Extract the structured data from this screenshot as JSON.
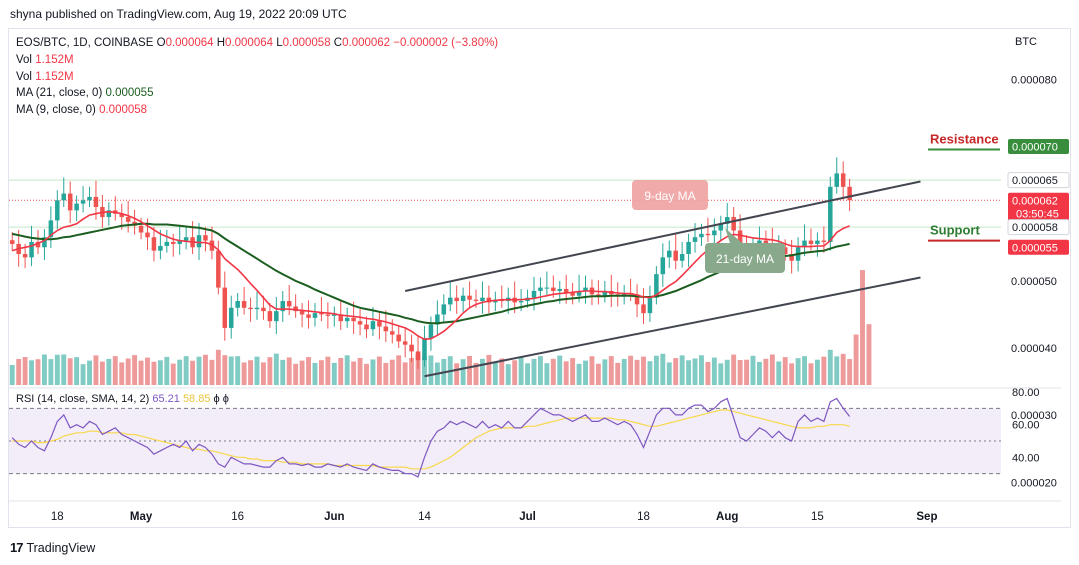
{
  "header": {
    "published": "shyna published on TradingView.com, Aug 19, 2022 20:09 UTC"
  },
  "legend": {
    "symbol": "EOS/BTC, 1D, COINBASE",
    "open_label": "O",
    "open": "0.000064",
    "high_label": "H",
    "high": "0.000064",
    "low_label": "L",
    "low": "0.000058",
    "close_label": "C",
    "close": "0.000062",
    "change": "−0.000002 (−3.80%)",
    "vol_label": "Vol",
    "vol1": "1.152M",
    "vol2": "1.152M",
    "ma21_label": "MA (21, close, 0)",
    "ma21": "0.000055",
    "ma9_label": "MA (9, close, 0)",
    "ma9": "0.000058"
  },
  "rsi_legend": {
    "label": "RSI (14, close, SMA, 14, 2)",
    "rsi": "65.21",
    "sma": "58.85",
    "extra1": "ϕ",
    "extra2": "ϕ"
  },
  "colors": {
    "up": "#26a69a",
    "down": "#ef5350",
    "ma9": "#f23645",
    "ma21": "#1b5e20",
    "rsi": "#7e57c2",
    "rsi_sma": "#f9d84a",
    "resistance": "#388e3c",
    "support_badge": "#f23645"
  },
  "footer": {
    "brand": "TradingView",
    "logo": "17"
  },
  "chart_data": {
    "type": "candlestick",
    "symbol": "EOS/BTC",
    "timeframe": "1D",
    "exchange": "COINBASE",
    "y_unit": "BTC",
    "price_range": [
      3.45e-05,
      8.75e-05
    ],
    "price_ticks": [
      {
        "value": 8e-05,
        "label": "0.000080"
      },
      {
        "value": 7e-05,
        "label": "0.000070"
      },
      {
        "value": 6.5e-05,
        "label": "0.000065"
      },
      {
        "value": 5.8e-05,
        "label": "0.000058"
      },
      {
        "value": 5e-05,
        "label": "0.000050"
      },
      {
        "value": 4e-05,
        "label": "0.000040"
      },
      {
        "value": 3e-05,
        "label": "0.000030"
      },
      {
        "value": 2e-05,
        "label": "0.000020"
      }
    ],
    "x_ticks": [
      "18",
      "May",
      "16",
      "Jun",
      "14",
      "Jul",
      "18",
      "Aug",
      "15",
      "Sep"
    ],
    "x_tick_index": [
      7,
      20,
      35,
      50,
      64,
      80,
      98,
      111,
      125,
      142
    ],
    "total_bars": 154,
    "price_badges": [
      {
        "label": "0.000070",
        "value": 7e-05,
        "color": "#388e3c"
      },
      {
        "label": "0.000065",
        "value": 6.5e-05,
        "color": "#ffffff"
      },
      {
        "label": "0.000062",
        "value": 6.2e-05,
        "color": "#f23645",
        "countdown": "03:50:45"
      },
      {
        "label": "0.000058",
        "value": 5.8e-05,
        "color": "#ffffff"
      },
      {
        "label": "0.000055",
        "value": 5.5e-05,
        "color": "#f23645"
      }
    ],
    "annotations": {
      "resistance": {
        "label": "Resistance",
        "value": 7e-05
      },
      "support": {
        "label": "Support",
        "value": 5.6e-05
      },
      "ma9_label": "9-day MA",
      "ma21_label": "21-day MA"
    },
    "channel": {
      "upper": [
        {
          "i": 61,
          "v": 4.85e-05
        },
        {
          "i": 141,
          "v": 6.48e-05
        }
      ],
      "lower": [
        {
          "i": 64,
          "v": 3.58e-05
        },
        {
          "i": 141,
          "v": 5.05e-05
        }
      ]
    },
    "close": [
      5.55e-05,
      5.4e-05,
      5.35e-05,
      5.58e-05,
      5.5e-05,
      5.65e-05,
      5.9e-05,
      6.2e-05,
      6.3e-05,
      6.05e-05,
      6.15e-05,
      6.2e-05,
      6.25e-05,
      6.1e-05,
      5.95e-05,
      6.05e-05,
      6e-05,
      5.95e-05,
      5.88e-05,
      5.82e-05,
      5.72e-05,
      5.65e-05,
      5.45e-05,
      5.52e-05,
      5.58e-05,
      5.55e-05,
      5.6e-05,
      5.65e-05,
      5.5e-05,
      5.68e-05,
      5.6e-05,
      5.45e-05,
      4.9e-05,
      4.3e-05,
      4.6e-05,
      4.7e-05,
      4.6e-05,
      4.58e-05,
      4.6e-05,
      4.55e-05,
      4.4e-05,
      4.55e-05,
      4.7e-05,
      4.62e-05,
      4.55e-05,
      4.5e-05,
      4.45e-05,
      4.52e-05,
      4.5e-05,
      4.48e-05,
      4.5e-05,
      4.4e-05,
      4.45e-05,
      4.4e-05,
      4.35e-05,
      4.28e-05,
      4.4e-05,
      4.32e-05,
      4.25e-05,
      4.2e-05,
      4.1e-05,
      4.05e-05,
      3.95e-05,
      3.82e-05,
      4.15e-05,
      4.35e-05,
      4.5e-05,
      4.65e-05,
      4.75e-05,
      4.7e-05,
      4.78e-05,
      4.72e-05,
      4.7e-05,
      4.75e-05,
      4.68e-05,
      4.72e-05,
      4.7e-05,
      4.75e-05,
      4.68e-05,
      4.7e-05,
      4.75e-05,
      4.85e-05,
      4.9e-05,
      4.9e-05,
      4.85e-05,
      4.88e-05,
      4.82e-05,
      4.78e-05,
      4.85e-05,
      4.9e-05,
      4.8e-05,
      4.78e-05,
      4.85e-05,
      4.8e-05,
      4.78e-05,
      4.82e-05,
      4.8e-05,
      4.65e-05,
      4.52e-05,
      4.75e-05,
      5.1e-05,
      5.35e-05,
      5.45e-05,
      5.3e-05,
      5.4e-05,
      5.58e-05,
      5.65e-05,
      5.7e-05,
      5.68e-05,
      5.75e-05,
      5.85e-05,
      5.95e-05,
      5.75e-05,
      5.5e-05,
      5.45e-05,
      5.52e-05,
      5.6e-05,
      5.55e-05,
      5.45e-05,
      5.5e-05,
      5.4e-05,
      5.3e-05,
      5.5e-05,
      5.6e-05,
      5.55e-05,
      5.6e-05,
      5.58e-05,
      6.4e-05,
      6.6e-05,
      6.4e-05,
      6.2e-05
    ],
    "ma9": [
      5.45e-05,
      5.48e-05,
      5.5e-05,
      5.52e-05,
      5.56e-05,
      5.6e-05,
      5.68e-05,
      5.75e-05,
      5.8e-05,
      5.82e-05,
      5.85e-05,
      5.92e-05,
      5.98e-05,
      6e-05,
      6.02e-05,
      6.03e-05,
      6.02e-05,
      6e-05,
      5.97e-05,
      5.93e-05,
      5.88e-05,
      5.82e-05,
      5.76e-05,
      5.7e-05,
      5.66e-05,
      5.62e-05,
      5.6e-05,
      5.59e-05,
      5.58e-05,
      5.57e-05,
      5.57e-05,
      5.54e-05,
      5.46e-05,
      5.33e-05,
      5.25e-05,
      5.17e-05,
      5.07e-05,
      4.96e-05,
      4.86e-05,
      4.75e-05,
      4.64e-05,
      4.58e-05,
      4.58e-05,
      4.58e-05,
      4.57e-05,
      4.56e-05,
      4.55e-05,
      4.54e-05,
      4.53e-05,
      4.52e-05,
      4.51e-05,
      4.49e-05,
      4.48e-05,
      4.47e-05,
      4.46e-05,
      4.44e-05,
      4.43e-05,
      4.41e-05,
      4.39e-05,
      4.36e-05,
      4.33e-05,
      4.3e-05,
      4.25e-05,
      4.18e-05,
      4.13e-05,
      4.14e-05,
      4.19e-05,
      4.25e-05,
      4.33e-05,
      4.42e-05,
      4.52e-05,
      4.6e-05,
      4.65e-05,
      4.68e-05,
      4.7e-05,
      4.71e-05,
      4.72e-05,
      4.72e-05,
      4.72e-05,
      4.72e-05,
      4.73e-05,
      4.74e-05,
      4.76e-05,
      4.78e-05,
      4.8e-05,
      4.81e-05,
      4.82e-05,
      4.83e-05,
      4.84e-05,
      4.85e-05,
      4.85e-05,
      4.84e-05,
      4.84e-05,
      4.83e-05,
      4.82e-05,
      4.81e-05,
      4.81e-05,
      4.79e-05,
      4.76e-05,
      4.75e-05,
      4.79e-05,
      4.86e-05,
      4.93e-05,
      4.99e-05,
      5.08e-05,
      5.18e-05,
      5.28e-05,
      5.38e-05,
      5.46e-05,
      5.53e-05,
      5.6e-05,
      5.66e-05,
      5.69e-05,
      5.68e-05,
      5.66e-05,
      5.64e-05,
      5.63e-05,
      5.62e-05,
      5.61e-05,
      5.59e-05,
      5.55e-05,
      5.52e-05,
      5.51e-05,
      5.51e-05,
      5.51e-05,
      5.52e-05,
      5.52e-05,
      5.6e-05,
      5.72e-05,
      5.78e-05,
      5.82e-05
    ],
    "ma21": [
      5.7e-05,
      5.68e-05,
      5.66e-05,
      5.64e-05,
      5.63e-05,
      5.62e-05,
      5.62e-05,
      5.63e-05,
      5.65e-05,
      5.66e-05,
      5.68e-05,
      5.7e-05,
      5.72e-05,
      5.74e-05,
      5.76e-05,
      5.78e-05,
      5.8e-05,
      5.82e-05,
      5.83e-05,
      5.84e-05,
      5.85e-05,
      5.85e-05,
      5.84e-05,
      5.84e-05,
      5.84e-05,
      5.83e-05,
      5.82e-05,
      5.81e-05,
      5.8e-05,
      5.79e-05,
      5.77e-05,
      5.75e-05,
      5.7e-05,
      5.63e-05,
      5.57e-05,
      5.51e-05,
      5.45e-05,
      5.39e-05,
      5.33e-05,
      5.27e-05,
      5.21e-05,
      5.15e-05,
      5.1e-05,
      5.05e-05,
      5e-05,
      4.96e-05,
      4.92e-05,
      4.87e-05,
      4.83e-05,
      4.79e-05,
      4.75e-05,
      4.71e-05,
      4.67e-05,
      4.63e-05,
      4.6e-05,
      4.58e-05,
      4.56e-05,
      4.54e-05,
      4.52e-05,
      4.5e-05,
      4.48e-05,
      4.45e-05,
      4.43e-05,
      4.4e-05,
      4.38e-05,
      4.37e-05,
      4.37e-05,
      4.38e-05,
      4.39e-05,
      4.4e-05,
      4.42e-05,
      4.44e-05,
      4.46e-05,
      4.48e-05,
      4.5e-05,
      4.52e-05,
      4.54e-05,
      4.57e-05,
      4.59e-05,
      4.61e-05,
      4.63e-05,
      4.65e-05,
      4.67e-05,
      4.69e-05,
      4.7e-05,
      4.72e-05,
      4.73e-05,
      4.74e-05,
      4.75e-05,
      4.76e-05,
      4.77e-05,
      4.77e-05,
      4.77e-05,
      4.78e-05,
      4.78e-05,
      4.78e-05,
      4.78e-05,
      4.77e-05,
      4.76e-05,
      4.76e-05,
      4.77e-05,
      4.79e-05,
      4.82e-05,
      4.85e-05,
      4.89e-05,
      4.93e-05,
      4.97e-05,
      5.01e-05,
      5.06e-05,
      5.1e-05,
      5.14e-05,
      5.19e-05,
      5.22e-05,
      5.25e-05,
      5.27e-05,
      5.29e-05,
      5.31e-05,
      5.33e-05,
      5.35e-05,
      5.36e-05,
      5.37e-05,
      5.38e-05,
      5.4e-05,
      5.42e-05,
      5.43e-05,
      5.44e-05,
      5.45e-05,
      5.48e-05,
      5.51e-05,
      5.53e-05,
      5.55e-05
    ],
    "volume_range": [
      0,
      4.8e-05
    ],
    "rsi_range": [
      20,
      80
    ],
    "rsi_ticks": [
      80,
      60,
      40
    ],
    "rsi_band": [
      30,
      70
    ],
    "rsi": [
      52,
      48,
      46,
      50,
      46,
      44,
      52,
      62,
      66,
      58,
      60,
      58,
      62,
      60,
      54,
      56,
      58,
      54,
      52,
      50,
      48,
      46,
      42,
      44,
      46,
      48,
      46,
      50,
      44,
      48,
      46,
      42,
      36,
      34,
      40,
      38,
      36,
      36,
      35,
      34,
      34,
      38,
      40,
      36,
      36,
      35,
      36,
      34,
      34,
      36,
      35,
      34,
      36,
      34,
      33,
      32,
      36,
      34,
      33,
      32,
      32,
      30,
      30,
      28,
      40,
      50,
      56,
      58,
      62,
      60,
      62,
      60,
      58,
      62,
      58,
      60,
      58,
      62,
      58,
      58,
      62,
      66,
      70,
      68,
      66,
      66,
      64,
      62,
      64,
      66,
      62,
      62,
      64,
      62,
      60,
      62,
      60,
      54,
      46,
      56,
      66,
      70,
      70,
      66,
      66,
      70,
      72,
      72,
      68,
      70,
      74,
      76,
      64,
      52,
      50,
      54,
      58,
      56,
      52,
      56,
      52,
      50,
      62,
      66,
      62,
      64,
      62,
      74,
      76,
      70,
      65
    ],
    "rsi_sma": [
      50,
      50,
      50,
      50,
      49,
      49,
      50,
      51,
      53,
      54,
      55,
      55,
      56,
      56,
      55,
      55,
      55,
      55,
      54,
      54,
      53,
      52,
      51,
      50,
      49,
      48,
      47,
      46,
      45,
      45,
      44,
      44,
      43,
      42,
      41,
      40,
      40,
      39,
      39,
      38,
      38,
      38,
      37,
      37,
      37,
      36,
      36,
      36,
      36,
      36,
      35,
      35,
      35,
      35,
      35,
      35,
      35,
      34,
      34,
      34,
      34,
      34,
      33,
      33,
      33,
      34,
      36,
      38,
      40,
      43,
      46,
      49,
      52,
      54,
      56,
      57,
      58,
      58,
      58,
      58,
      59,
      59,
      60,
      61,
      62,
      63,
      64,
      64,
      64,
      64,
      64,
      64,
      64,
      64,
      63,
      63,
      62,
      61,
      60,
      59,
      59,
      60,
      61,
      62,
      63,
      64,
      65,
      66,
      67,
      68,
      69,
      69,
      68,
      67,
      66,
      65,
      64,
      63,
      62,
      61,
      60,
      59,
      58,
      58,
      58,
      59,
      59,
      60,
      60,
      60,
      59
    ]
  }
}
